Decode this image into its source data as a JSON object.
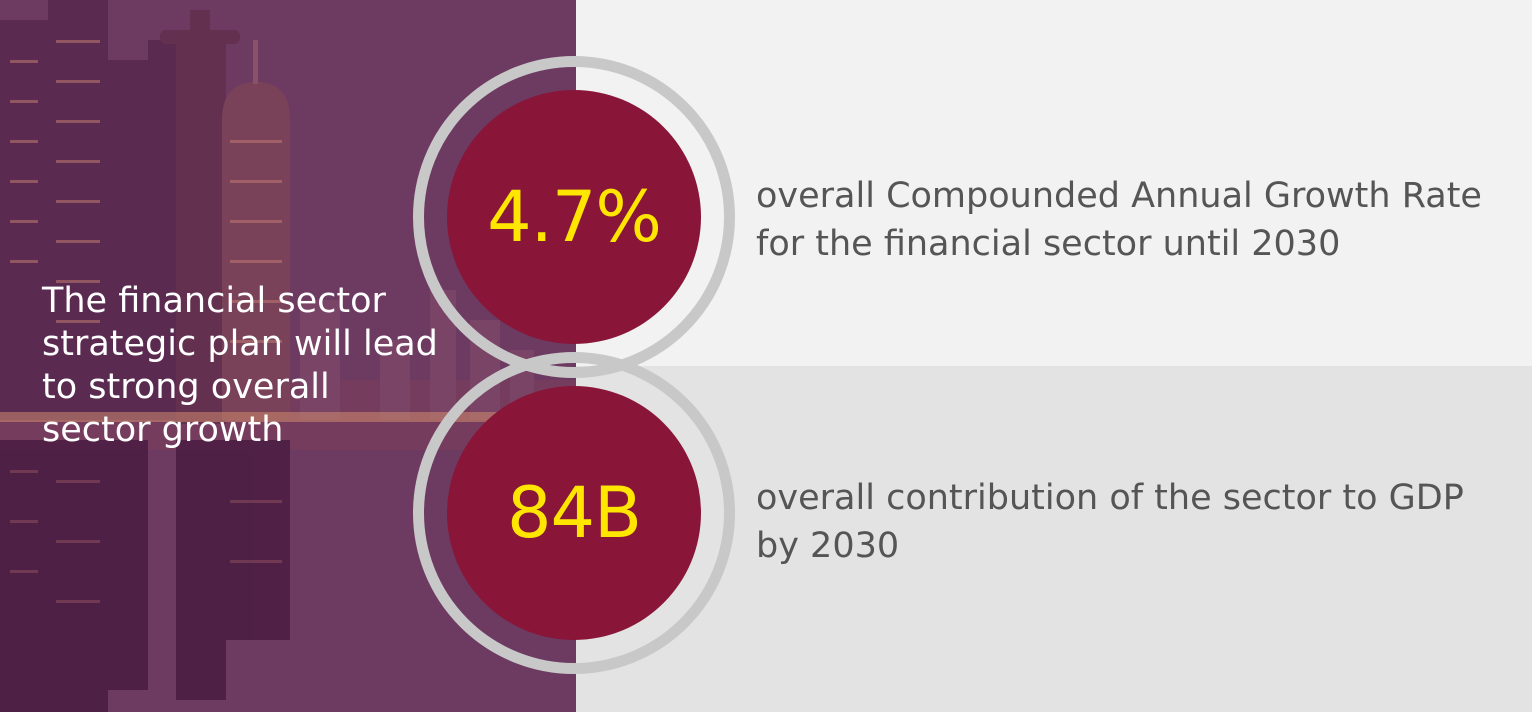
{
  "intro": {
    "text": "The financial sector strategic plan will lead to strong overall sector growth"
  },
  "stats": [
    {
      "value": "4.7%",
      "description": "overall Compounded Annual Growth Rate for the financial sector until 2030"
    },
    {
      "value": "84B",
      "description": "overall contribution of the sector to GDP by 2030"
    }
  ],
  "colors": {
    "accent": "#891538",
    "value_text": "#ffe600",
    "ring": "#c8c8c8",
    "body_text": "#555555",
    "overlay": "#6e3b63"
  },
  "background": {
    "image": "city-skyline-night"
  }
}
